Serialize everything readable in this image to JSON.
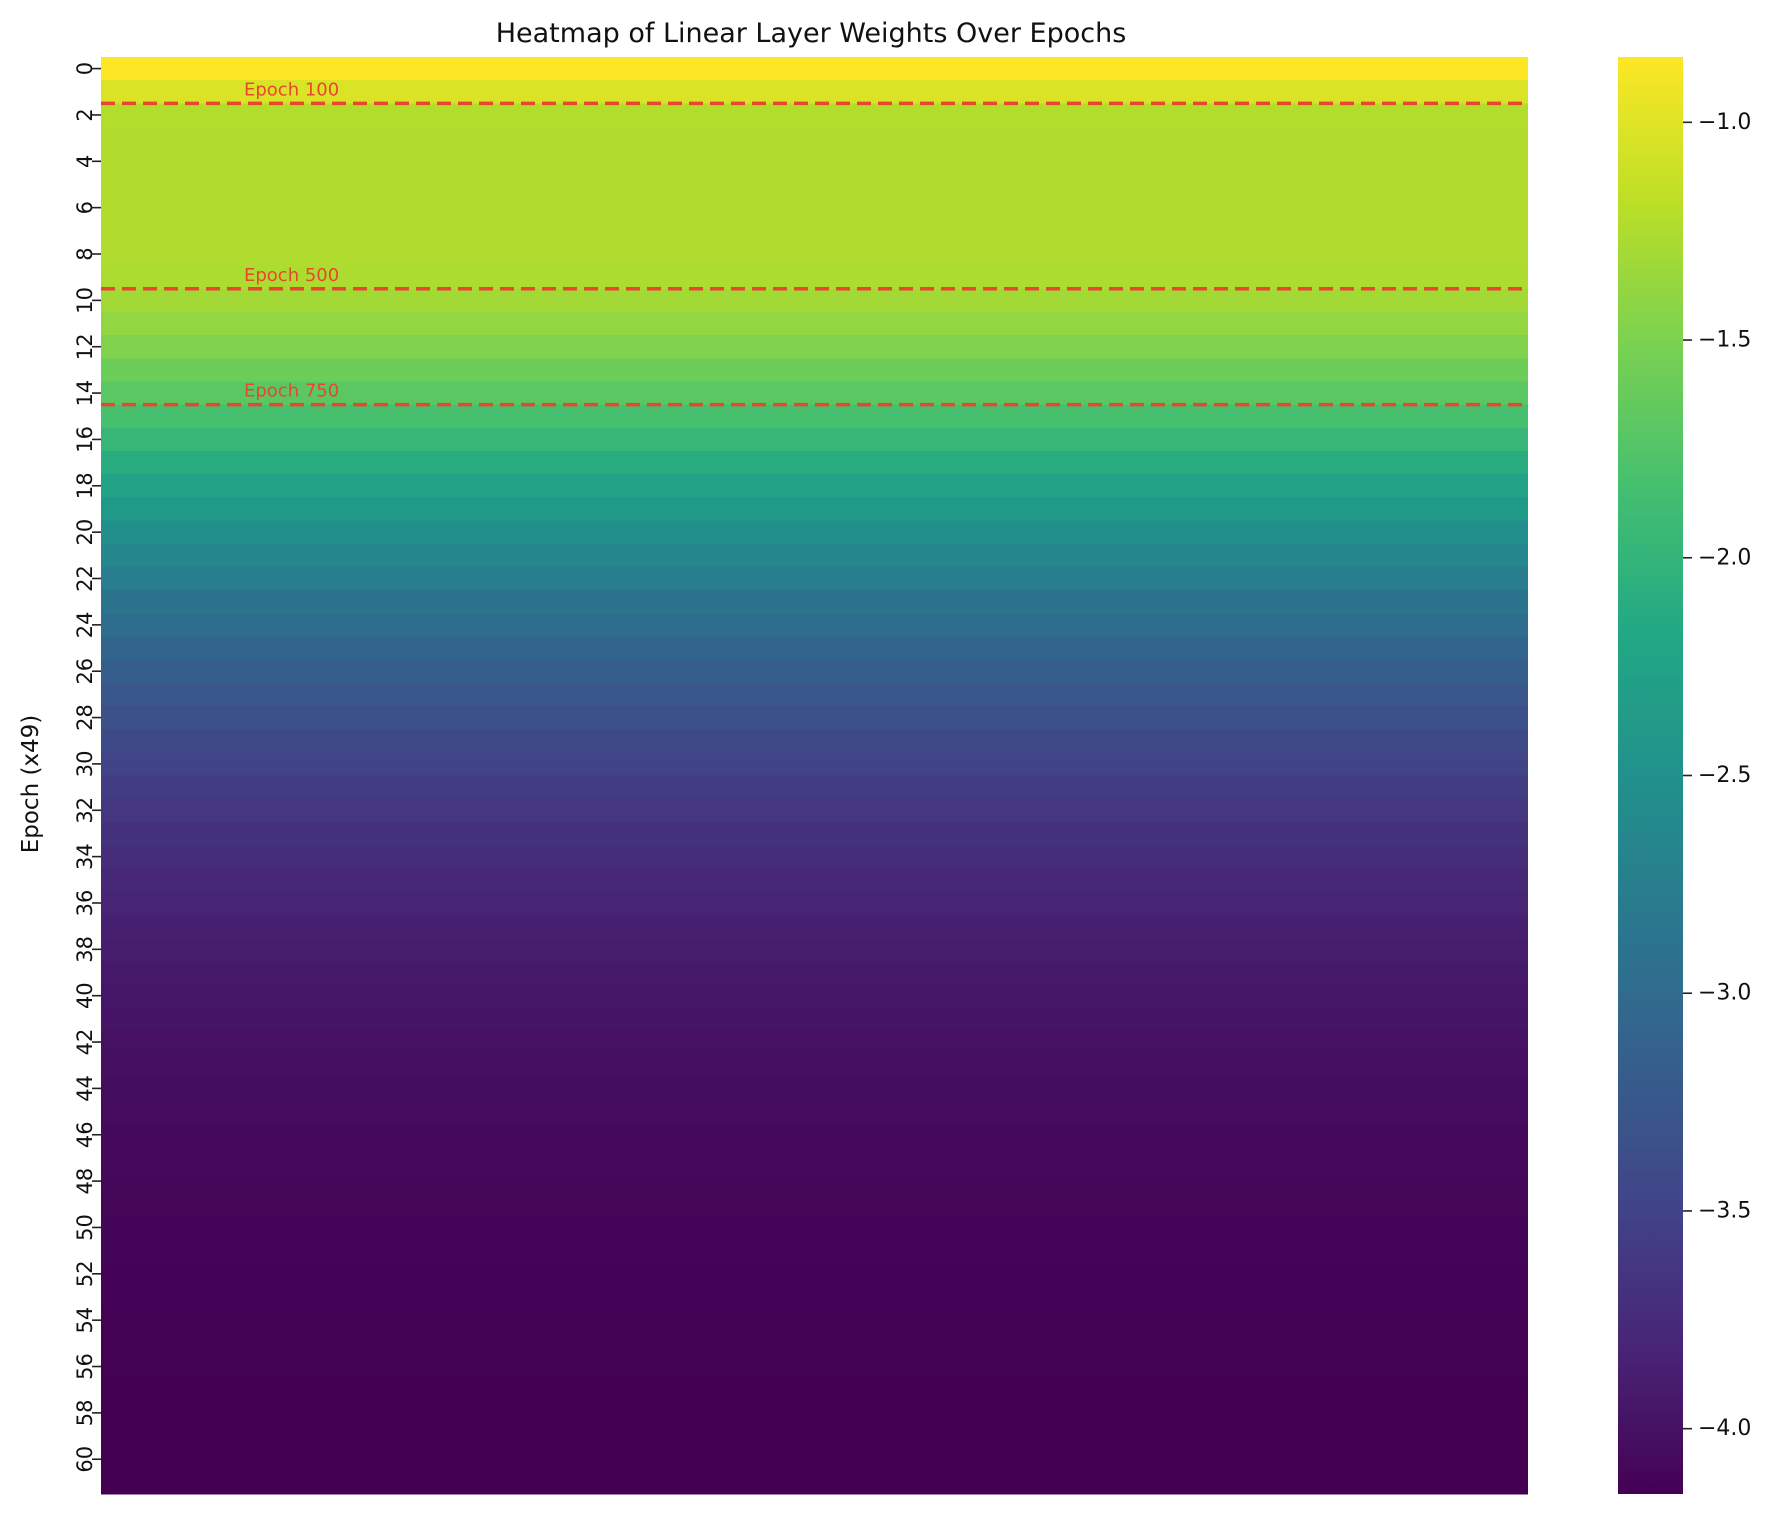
{
  "chart_data": {
    "type": "heatmap",
    "title": "Heatmap of Linear Layer Weights Over Epochs",
    "xlabel": "",
    "ylabel": "Epoch (x49)",
    "colormap": "viridis",
    "rows": 62,
    "columns": 1,
    "y_tick_labels": [
      "0",
      "2",
      "4",
      "6",
      "8",
      "10",
      "12",
      "14",
      "16",
      "18",
      "20",
      "22",
      "24",
      "26",
      "28",
      "30",
      "32",
      "34",
      "36",
      "38",
      "40",
      "42",
      "44",
      "46",
      "48",
      "50",
      "52",
      "54",
      "56",
      "58",
      "60"
    ],
    "values": [
      -0.85,
      -1.03,
      -1.23,
      -1.24,
      -1.24,
      -1.24,
      -1.24,
      -1.24,
      -1.25,
      -1.26,
      -1.31,
      -1.39,
      -1.48,
      -1.59,
      -1.7,
      -1.83,
      -1.97,
      -2.11,
      -2.25,
      -2.39,
      -2.53,
      -2.65,
      -2.77,
      -2.88,
      -2.98,
      -3.08,
      -3.17,
      -3.26,
      -3.34,
      -3.42,
      -3.49,
      -3.56,
      -3.62,
      -3.68,
      -3.73,
      -3.78,
      -3.82,
      -3.86,
      -3.89,
      -3.92,
      -3.95,
      -3.975,
      -4.0,
      -4.02,
      -4.04,
      -4.055,
      -4.07,
      -4.085,
      -4.095,
      -4.105,
      -4.115,
      -4.122,
      -4.128,
      -4.133,
      -4.138,
      -4.142,
      -4.145,
      -4.148,
      -4.15,
      -4.152,
      -4.153,
      -4.154
    ],
    "colorbar": {
      "min": -4.15,
      "max": -0.85,
      "ticks": [
        -1.0,
        -1.5,
        -2.0,
        -2.5,
        -3.0,
        -3.5,
        -4.0
      ],
      "tick_labels": [
        "−1.0",
        "−1.5",
        "−2.0",
        "−2.5",
        "−3.0",
        "−3.5",
        "−4.0"
      ]
    },
    "annotations": [
      {
        "label": "Epoch 100",
        "row_boundary": 2
      },
      {
        "label": "Epoch 500",
        "row_boundary": 10
      },
      {
        "label": "Epoch 750",
        "row_boundary": 15
      }
    ],
    "annotation_color": "#e8472d"
  }
}
